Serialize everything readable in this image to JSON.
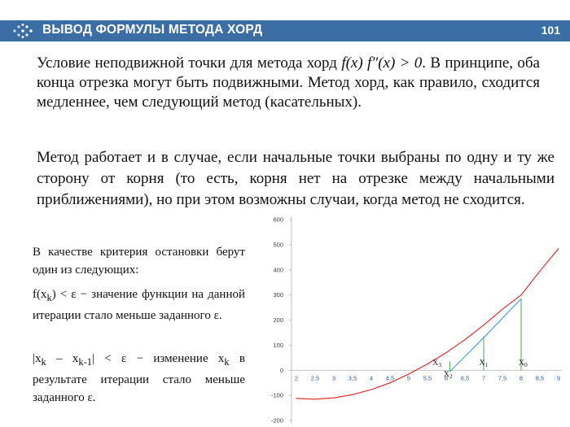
{
  "header": {
    "title": "ВЫВОД ФОРМУЛЫ МЕТОДА ХОРД",
    "page_number": "101",
    "color": "#3a6ea5"
  },
  "text": {
    "p1_a": "Условие неподвижной точки для метода хорд ",
    "p1_expr": "f(x) f″(x) > 0",
    "p1_b": ". В принципе, оба конца отрезка могут быть подвижными. Метод хорд, как правило, сходится медленнее, чем следующий метод (касательных).",
    "p2": "Метод работает и в случае, если начальные точки выбраны по одну и ту же сторону от корня (то есть, корня нет на отрезке между начальными приближениями), но при этом возможны случаи, когда метод не сходится.",
    "p3": "В качестве критерия остановки берут один из следующих:",
    "p4_a": "f(x",
    "p4_sub": "k",
    "p4_b": ") < ε − значение функции на данной итерации стало меньше заданного ε.",
    "p5_a": "|x",
    "p5_sub1": "k",
    "p5_b": " – x",
    "p5_sub2": "k-1",
    "p5_c": "| < ε − изменение x",
    "p5_sub3": "k",
    "p5_d": " в результате итерации стало меньше заданного ε."
  },
  "chart_data": {
    "type": "line",
    "x_ticks": [
      "2",
      "2,5",
      "3",
      "3,5",
      "4",
      "4,5",
      "5",
      "5,5",
      "6",
      "6,5",
      "7",
      "7,5",
      "8",
      "8,5",
      "9"
    ],
    "y_ticks": [
      "600",
      "500",
      "400",
      "300",
      "200",
      "100",
      "0",
      "-100",
      "-200"
    ],
    "xlim": [
      2,
      9
    ],
    "ylim": [
      -200,
      600
    ],
    "grid": false,
    "series": [
      {
        "color": "#e02020",
        "x": [
          2,
          2.5,
          3,
          3.5,
          4,
          4.5,
          5,
          5.5,
          6,
          6.5,
          7,
          7.5,
          8,
          8.5,
          9
        ],
        "y": [
          -112,
          -115,
          -110,
          -97,
          -77,
          -50,
          -15,
          25,
          70,
          122,
          180,
          243,
          300,
          395,
          485
        ]
      },
      {
        "color": "#2f8fdf",
        "x": [
          8,
          7,
          6.1
        ],
        "y": [
          285,
          130,
          -5
        ]
      },
      {
        "color": "#4aa84a",
        "x": [
          6.1,
          6.1
        ],
        "y": [
          -5,
          35
        ]
      },
      {
        "color": "#4aa84a",
        "x": [
          7,
          7
        ],
        "y": [
          0,
          135
        ]
      },
      {
        "color": "#4aa84a",
        "x": [
          8,
          8
        ],
        "y": [
          0,
          285
        ]
      }
    ],
    "annotations": [
      {
        "text": "X",
        "sub": "3",
        "x": 5.75,
        "y": 20
      },
      {
        "text": "X",
        "sub": "2",
        "x": 6.05,
        "y": -25
      },
      {
        "text": "X",
        "sub": "1",
        "x": 7.0,
        "y": 20
      },
      {
        "text": "X",
        "sub": "0",
        "x": 8.05,
        "y": 20
      }
    ]
  }
}
